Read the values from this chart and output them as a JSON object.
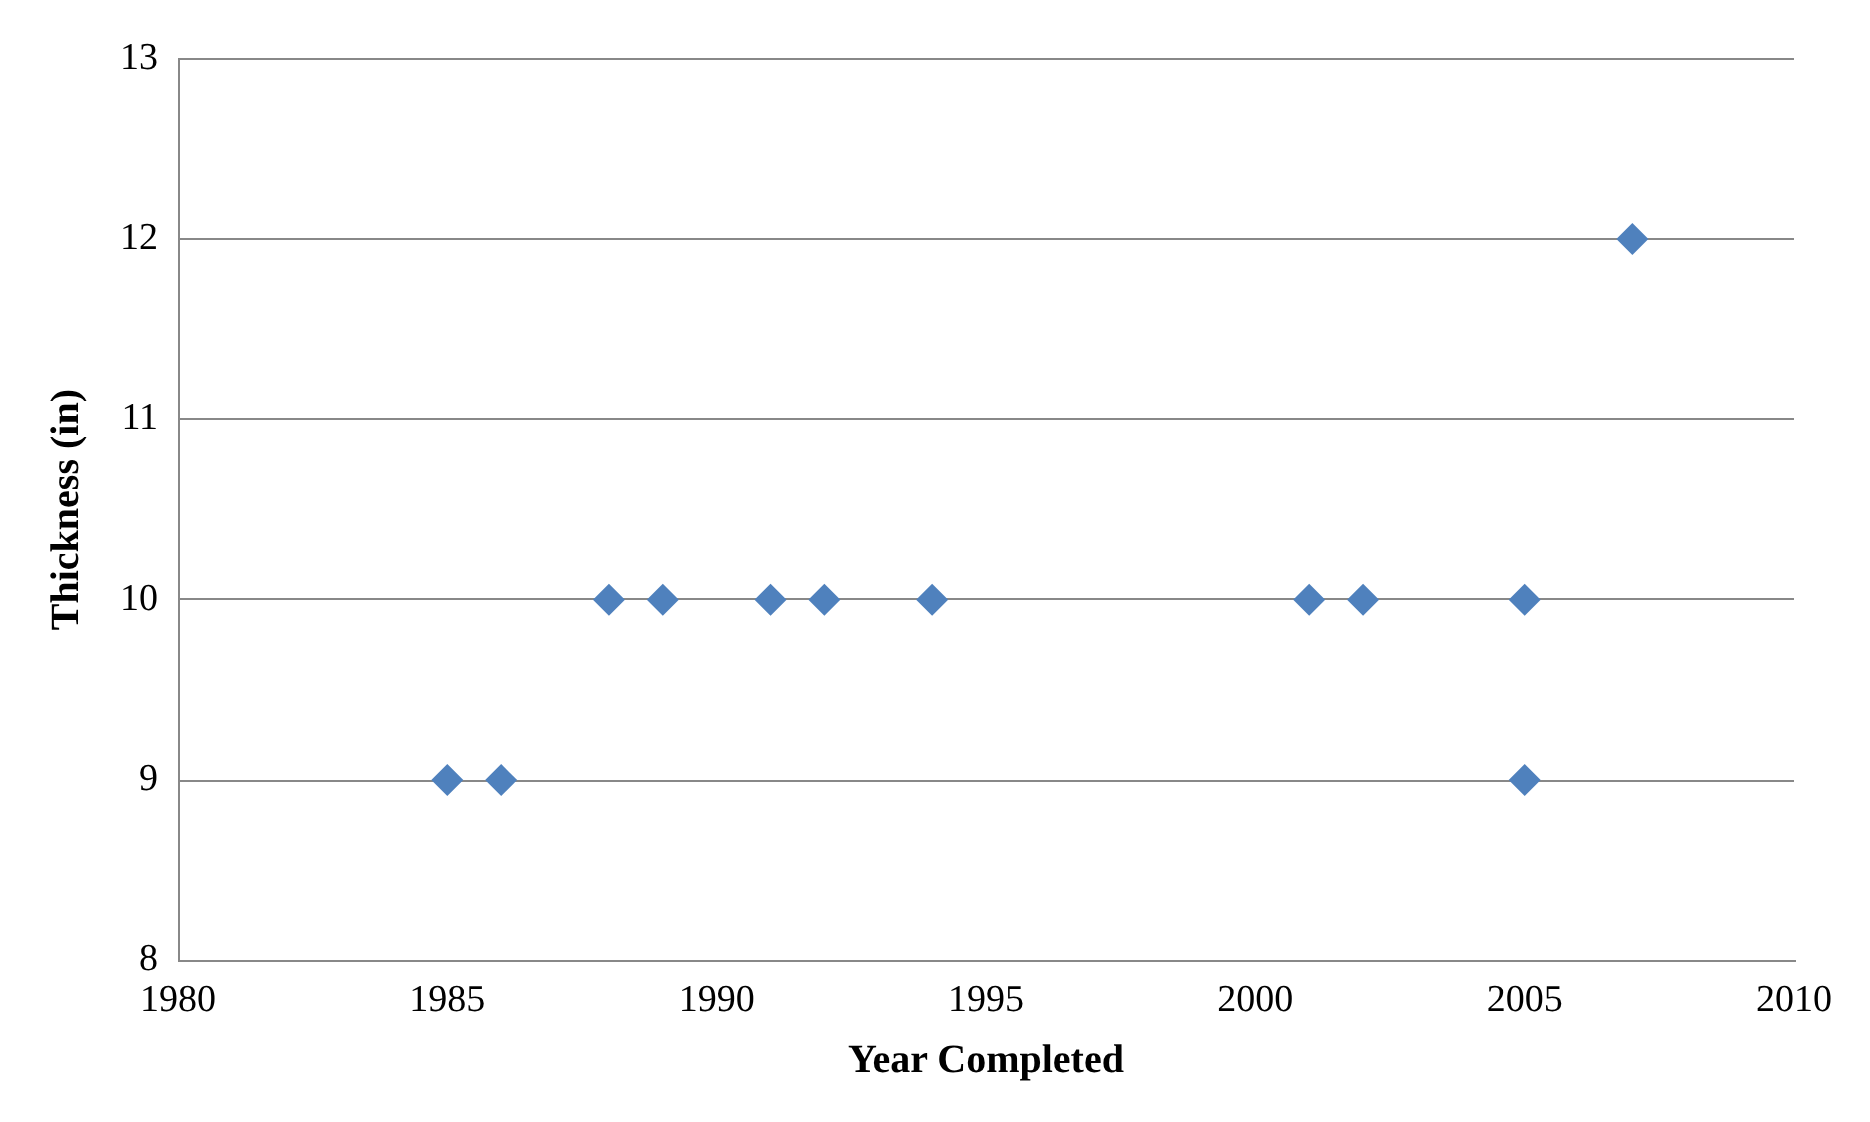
{
  "chart_data": {
    "type": "scatter",
    "xlabel": "Year Completed",
    "ylabel": "Thickness (in)",
    "x": [
      1985,
      1986,
      1988,
      1989,
      1991,
      1992,
      1994,
      2001,
      2002,
      2005,
      2005,
      2007
    ],
    "values": [
      9,
      9,
      10,
      10,
      10,
      10,
      10,
      10,
      10,
      10,
      9,
      12
    ],
    "color": "#4f81bd",
    "marker": "diamond",
    "xlim": [
      1980,
      2010
    ],
    "xticks": [
      1980,
      1985,
      1990,
      1995,
      2000,
      2005,
      2010
    ],
    "ylim": [
      8,
      13
    ],
    "yticks": [
      8,
      9,
      10,
      11,
      12,
      13
    ],
    "grid": "y",
    "legend": false
  }
}
